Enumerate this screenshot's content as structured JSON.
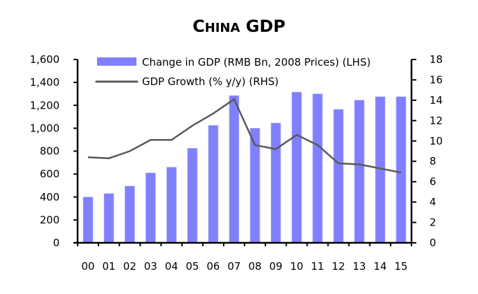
{
  "chart_data": {
    "type": "bar+line",
    "title": "China GDP",
    "categories": [
      "00",
      "01",
      "02",
      "03",
      "04",
      "05",
      "06",
      "07",
      "08",
      "09",
      "10",
      "11",
      "12",
      "13",
      "14",
      "15"
    ],
    "series": [
      {
        "name": "Change in GDP (RMB Bn, 2008 Prices) (LHS)",
        "type": "bar",
        "axis": "left",
        "color": "#8080FF",
        "values": [
          400,
          430,
          495,
          610,
          660,
          825,
          1025,
          1285,
          1000,
          1045,
          1315,
          1300,
          1165,
          1245,
          1275,
          1275
        ]
      },
      {
        "name": "GDP Growth  (% y/y) (RHS)",
        "type": "line",
        "axis": "right",
        "color": "#595959",
        "values": [
          8.4,
          8.3,
          9.0,
          10.1,
          10.1,
          11.5,
          12.7,
          14.1,
          9.6,
          9.2,
          10.6,
          9.6,
          7.8,
          7.7,
          7.3,
          6.9
        ]
      }
    ],
    "left_axis": {
      "ylim": [
        0,
        1600
      ],
      "ticks": [
        0,
        200,
        400,
        600,
        800,
        1000,
        1200,
        1400,
        1600
      ],
      "tick_labels": [
        "0",
        "200",
        "400",
        "600",
        "800",
        "1,000",
        "1,200",
        "1,400",
        "1,600"
      ]
    },
    "right_axis": {
      "ylim": [
        0,
        18
      ],
      "ticks": [
        0,
        2,
        4,
        6,
        8,
        10,
        12,
        14,
        16,
        18
      ],
      "tick_labels": [
        "0",
        "2",
        "4",
        "6",
        "8",
        "10",
        "12",
        "14",
        "16",
        "18"
      ]
    },
    "xlabel": "",
    "ylabel": "",
    "grid": false,
    "legend_position": "top-left"
  }
}
